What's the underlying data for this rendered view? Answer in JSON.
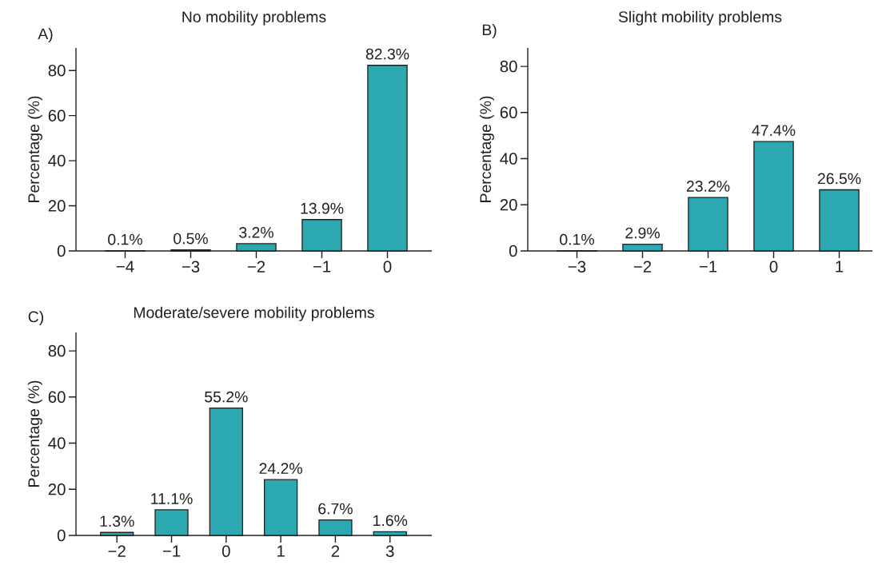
{
  "chart_data": [
    {
      "type": "bar",
      "title": "No mobility problems",
      "ylabel": "Percentage (%)",
      "categories": [
        "−4",
        "−3",
        "−2",
        "−1",
        "0"
      ],
      "values": [
        0.1,
        0.5,
        3.2,
        13.9,
        82.3
      ],
      "value_labels": [
        "0.1%",
        "0.5%",
        "3.2%",
        "13.9%",
        "82.3%"
      ],
      "color": "#2ca9b0",
      "ylim": [
        0,
        90
      ],
      "yticks": [
        0,
        20,
        40,
        60,
        80
      ],
      "annotations": [
        "A)"
      ]
    },
    {
      "type": "bar",
      "title": "Slight mobility problems",
      "ylabel": "Percentage (%)",
      "categories": [
        "−3",
        "−2",
        "−1",
        "0",
        "1"
      ],
      "values": [
        0.1,
        2.9,
        23.2,
        47.4,
        26.5
      ],
      "value_labels": [
        "0.1%",
        "2.9%",
        "23.2%",
        "47.4%",
        "26.5%"
      ],
      "color": "#2ca9b0",
      "ylim": [
        0,
        88
      ],
      "yticks": [
        0,
        20,
        40,
        60,
        80
      ],
      "annotations": [
        "B)"
      ]
    },
    {
      "type": "bar",
      "title": "Moderate/severe mobility problems",
      "ylabel": "Percentage (%)",
      "categories": [
        "−2",
        "−1",
        "0",
        "1",
        "2",
        "3"
      ],
      "values": [
        1.3,
        11.1,
        55.2,
        24.2,
        6.7,
        1.6
      ],
      "value_labels": [
        "1.3%",
        "11.1%",
        "55.2%",
        "24.2%",
        "6.7%",
        "1.6%"
      ],
      "color": "#2ca9b0",
      "ylim": [
        0,
        88
      ],
      "yticks": [
        0,
        20,
        40,
        60,
        80
      ],
      "annotations": [
        "C)"
      ]
    }
  ]
}
